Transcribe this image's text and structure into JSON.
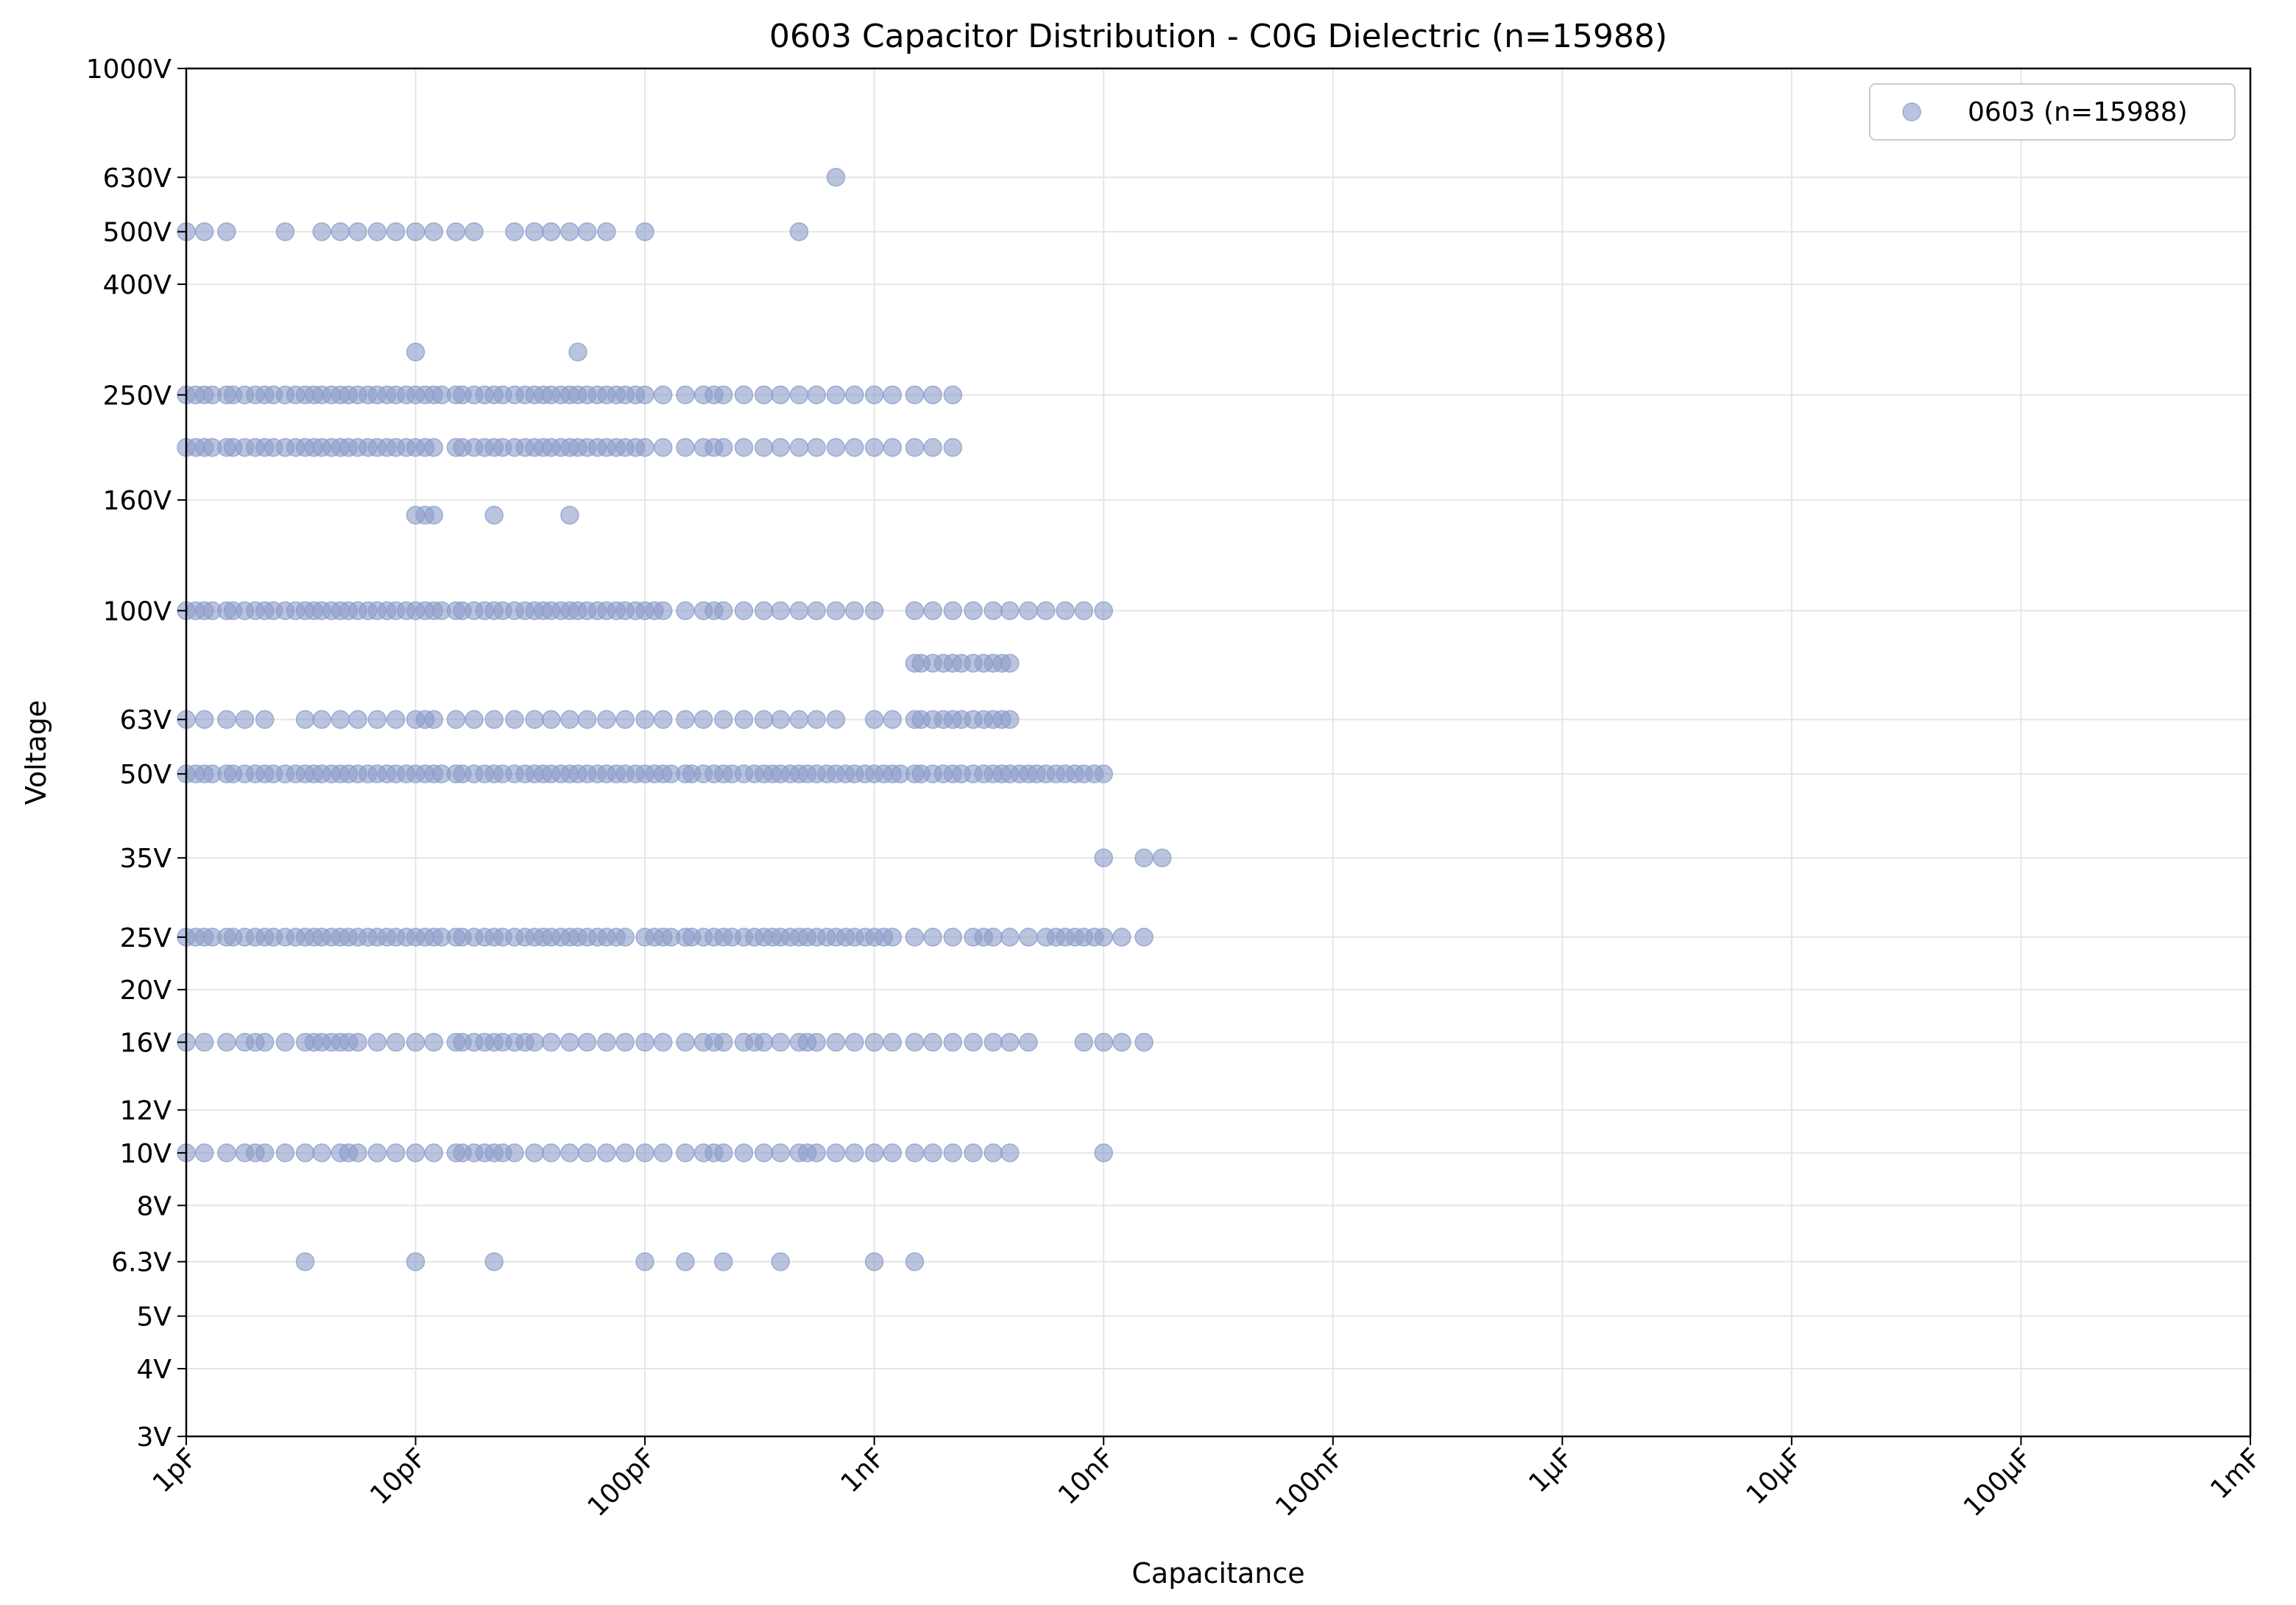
{
  "chart_data": {
    "type": "scatter",
    "title": "0603 Capacitor Distribution - C0G Dielectric (n=15988)",
    "xlabel": "Capacitance",
    "ylabel": "Voltage",
    "x_scale": "log",
    "y_scale": "log",
    "xlim": [
      "1pF",
      "1mF"
    ],
    "ylim": [
      "3V",
      "1000V"
    ],
    "grid": true,
    "legend_position": "top-right",
    "marker_color": "#8c9dca",
    "x_ticks": [
      {
        "value_pF": 1,
        "label": "1pF"
      },
      {
        "value_pF": 10,
        "label": "10pF"
      },
      {
        "value_pF": 100,
        "label": "100pF"
      },
      {
        "value_pF": 1000,
        "label": "1nF"
      },
      {
        "value_pF": 10000,
        "label": "10nF"
      },
      {
        "value_pF": 100000,
        "label": "100nF"
      },
      {
        "value_pF": 1000000,
        "label": "1µF"
      },
      {
        "value_pF": 10000000,
        "label": "10µF"
      },
      {
        "value_pF": 100000000,
        "label": "100µF"
      },
      {
        "value_pF": 1000000000,
        "label": "1mF"
      }
    ],
    "y_ticks": [
      {
        "value_V": 3,
        "label": "3V"
      },
      {
        "value_V": 4,
        "label": "4V"
      },
      {
        "value_V": 5,
        "label": "5V"
      },
      {
        "value_V": 6.3,
        "label": "6.3V"
      },
      {
        "value_V": 8,
        "label": "8V"
      },
      {
        "value_V": 10,
        "label": "10V"
      },
      {
        "value_V": 12,
        "label": "12V"
      },
      {
        "value_V": 16,
        "label": "16V"
      },
      {
        "value_V": 20,
        "label": "20V"
      },
      {
        "value_V": 25,
        "label": "25V"
      },
      {
        "value_V": 35,
        "label": "35V"
      },
      {
        "value_V": 50,
        "label": "50V"
      },
      {
        "value_V": 63,
        "label": "63V"
      },
      {
        "value_V": 100,
        "label": "100V"
      },
      {
        "value_V": 160,
        "label": "160V"
      },
      {
        "value_V": 250,
        "label": "250V"
      },
      {
        "value_V": 400,
        "label": "400V"
      },
      {
        "value_V": 500,
        "label": "500V"
      },
      {
        "value_V": 630,
        "label": "630V"
      },
      {
        "value_V": 1000,
        "label": "1000V"
      }
    ],
    "series": [
      {
        "name": "0603 (n=15988)",
        "unit_x": "pF",
        "unit_y": "V",
        "points_by_voltage": [
          {
            "voltage": 630,
            "capacitance_pF": [
              680
            ]
          },
          {
            "voltage": 500,
            "capacitance_pF": [
              1,
              1.2,
              1.5,
              2.7,
              3.9,
              4.7,
              5.6,
              6.8,
              8.2,
              10,
              12,
              15,
              18,
              27,
              33,
              39,
              47,
              56,
              68,
              100,
              470
            ]
          },
          {
            "voltage": 300,
            "capacitance_pF": [
              10,
              51
            ]
          },
          {
            "voltage": 250,
            "capacitance_pF": [
              1,
              1.1,
              1.2,
              1.3,
              1.5,
              1.6,
              1.8,
              2,
              2.2,
              2.4,
              2.7,
              3,
              3.3,
              3.6,
              3.9,
              4.3,
              4.7,
              5.1,
              5.6,
              6.2,
              6.8,
              7.5,
              8.2,
              9.1,
              10,
              11,
              12,
              13,
              15,
              16,
              18,
              20,
              22,
              24,
              27,
              30,
              33,
              36,
              39,
              43,
              47,
              51,
              56,
              62,
              68,
              75,
              82,
              91,
              100,
              120,
              150,
              180,
              200,
              220,
              270,
              330,
              390,
              470,
              560,
              680,
              820,
              1000,
              1200,
              1500,
              1800,
              2200
            ]
          },
          {
            "voltage": 200,
            "capacitance_pF": [
              1,
              1.1,
              1.2,
              1.3,
              1.5,
              1.6,
              1.8,
              2,
              2.2,
              2.4,
              2.7,
              3,
              3.3,
              3.6,
              3.9,
              4.3,
              4.7,
              5.1,
              5.6,
              6.2,
              6.8,
              7.5,
              8.2,
              9.1,
              10,
              11,
              12,
              15,
              16,
              18,
              20,
              22,
              24,
              27,
              30,
              33,
              36,
              39,
              43,
              47,
              51,
              56,
              62,
              68,
              75,
              82,
              91,
              100,
              120,
              150,
              180,
              200,
              220,
              270,
              330,
              390,
              470,
              560,
              680,
              820,
              1000,
              1200,
              1500,
              1800,
              2200
            ]
          },
          {
            "voltage": 150,
            "capacitance_pF": [
              10,
              11,
              12,
              22,
              47
            ]
          },
          {
            "voltage": 100,
            "capacitance_pF": [
              1,
              1.1,
              1.2,
              1.3,
              1.5,
              1.6,
              1.8,
              2,
              2.2,
              2.4,
              2.7,
              3,
              3.3,
              3.6,
              3.9,
              4.3,
              4.7,
              5.1,
              5.6,
              6.2,
              6.8,
              7.5,
              8.2,
              9.1,
              10,
              11,
              12,
              13,
              15,
              16,
              18,
              20,
              22,
              24,
              27,
              30,
              33,
              36,
              39,
              43,
              47,
              51,
              56,
              62,
              68,
              75,
              82,
              91,
              100,
              110,
              120,
              150,
              180,
              200,
              220,
              270,
              330,
              390,
              470,
              560,
              680,
              820,
              1000,
              1500,
              1800,
              2200,
              2700,
              3300,
              3900,
              4700,
              5600,
              6800,
              8200,
              10000
            ]
          },
          {
            "voltage": 80,
            "capacitance_pF": [
              1500,
              1600,
              1800,
              2000,
              2200,
              2400,
              2700,
              3000,
              3300,
              3600,
              3900
            ]
          },
          {
            "voltage": 63,
            "capacitance_pF": [
              1,
              1.2,
              1.5,
              1.8,
              2.2,
              3.3,
              3.9,
              4.7,
              5.6,
              6.8,
              8.2,
              10,
              11,
              12,
              15,
              18,
              22,
              27,
              33,
              39,
              47,
              56,
              68,
              82,
              100,
              120,
              150,
              180,
              220,
              270,
              330,
              390,
              470,
              560,
              680,
              1000,
              1200,
              1500,
              1600,
              1800,
              2000,
              2200,
              2400,
              2700,
              3000,
              3300,
              3600,
              3900
            ]
          },
          {
            "voltage": 50,
            "capacitance_pF": [
              1,
              1.1,
              1.2,
              1.3,
              1.5,
              1.6,
              1.8,
              2,
              2.2,
              2.4,
              2.7,
              3,
              3.3,
              3.6,
              3.9,
              4.3,
              4.7,
              5.1,
              5.6,
              6.2,
              6.8,
              7.5,
              8.2,
              9.1,
              10,
              11,
              12,
              13,
              15,
              16,
              18,
              20,
              22,
              24,
              27,
              30,
              33,
              36,
              39,
              43,
              47,
              51,
              56,
              62,
              68,
              75,
              82,
              91,
              100,
              110,
              120,
              130,
              150,
              160,
              180,
              200,
              220,
              240,
              270,
              300,
              330,
              360,
              390,
              430,
              470,
              510,
              560,
              620,
              680,
              750,
              820,
              910,
              1000,
              1100,
              1200,
              1300,
              1500,
              1600,
              1800,
              2000,
              2200,
              2400,
              2700,
              3000,
              3300,
              3600,
              3900,
              4300,
              4700,
              5100,
              5600,
              6200,
              6800,
              7500,
              8200,
              9100,
              10000
            ]
          },
          {
            "voltage": 35,
            "capacitance_pF": [
              10000,
              15000,
              18000
            ]
          },
          {
            "voltage": 25,
            "capacitance_pF": [
              1,
              1.1,
              1.2,
              1.3,
              1.5,
              1.6,
              1.8,
              2,
              2.2,
              2.4,
              2.7,
              3,
              3.3,
              3.6,
              3.9,
              4.3,
              4.7,
              5.1,
              5.6,
              6.2,
              6.8,
              7.5,
              8.2,
              9.1,
              10,
              11,
              12,
              13,
              15,
              16,
              18,
              20,
              22,
              24,
              27,
              30,
              33,
              36,
              39,
              43,
              47,
              51,
              56,
              62,
              68,
              75,
              82,
              100,
              110,
              120,
              130,
              150,
              160,
              180,
              200,
              220,
              240,
              270,
              300,
              330,
              360,
              390,
              430,
              470,
              510,
              560,
              620,
              680,
              750,
              820,
              910,
              1000,
              1100,
              1200,
              1500,
              1800,
              2200,
              2700,
              3000,
              3300,
              3900,
              4700,
              5600,
              6200,
              6800,
              7500,
              8200,
              9100,
              10000,
              12000,
              15000
            ]
          },
          {
            "voltage": 16,
            "capacitance_pF": [
              1,
              1.2,
              1.5,
              1.8,
              2,
              2.2,
              2.7,
              3.3,
              3.6,
              3.9,
              4.3,
              4.7,
              5.1,
              5.6,
              6.8,
              8.2,
              10,
              12,
              15,
              16,
              18,
              20,
              22,
              24,
              27,
              30,
              33,
              39,
              47,
              56,
              68,
              82,
              100,
              120,
              150,
              180,
              200,
              220,
              270,
              300,
              330,
              390,
              470,
              510,
              560,
              680,
              820,
              1000,
              1200,
              1500,
              1800,
              2200,
              2700,
              3300,
              3900,
              4700,
              8200,
              10000,
              12000,
              15000
            ]
          },
          {
            "voltage": 10,
            "capacitance_pF": [
              1,
              1.2,
              1.5,
              1.8,
              2,
              2.2,
              2.7,
              3.3,
              3.9,
              4.7,
              5.1,
              5.6,
              6.8,
              8.2,
              10,
              12,
              15,
              16,
              18,
              20,
              22,
              24,
              27,
              33,
              39,
              47,
              56,
              68,
              82,
              100,
              120,
              150,
              180,
              200,
              220,
              270,
              330,
              390,
              470,
              510,
              560,
              680,
              820,
              1000,
              1200,
              1500,
              1800,
              2200,
              2700,
              3300,
              3900,
              10000
            ]
          },
          {
            "voltage": 6.3,
            "capacitance_pF": [
              3.3,
              10,
              22,
              100,
              150,
              220,
              390,
              1000,
              1500
            ]
          }
        ]
      }
    ]
  }
}
